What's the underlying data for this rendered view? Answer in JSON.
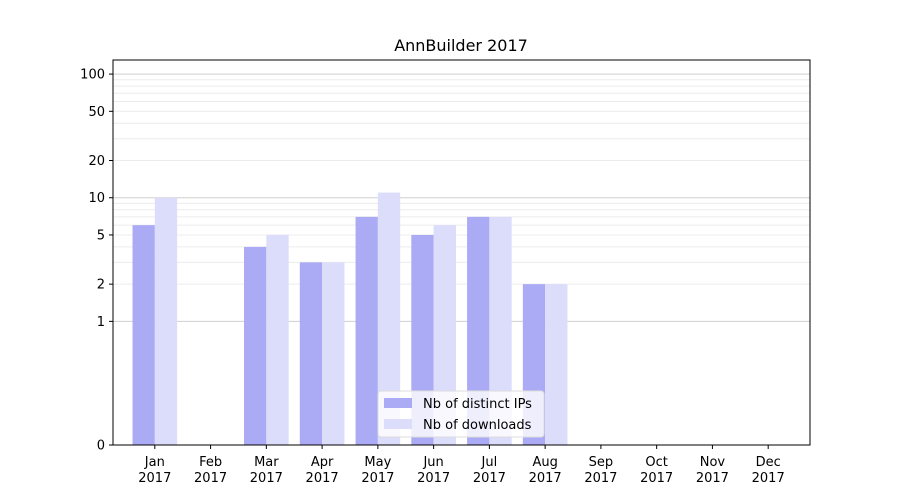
{
  "chart_data": {
    "type": "bar",
    "title": "AnnBuilder 2017",
    "xlabel": "",
    "ylabel": "",
    "y_scale": "symlog",
    "ylim": [
      0,
      130
    ],
    "y_ticks": [
      "0",
      "1",
      "2",
      "5",
      "10",
      "20",
      "50",
      "100"
    ],
    "grid": true,
    "legend_position": "bottom-center",
    "categories": [
      "Jan\n2017",
      "Feb\n2017",
      "Mar\n2017",
      "Apr\n2017",
      "May\n2017",
      "Jun\n2017",
      "Jul\n2017",
      "Aug\n2017",
      "Sep\n2017",
      "Oct\n2017",
      "Nov\n2017",
      "Dec\n2017"
    ],
    "series": [
      {
        "name": "Nb of distinct IPs",
        "color": "#aaaaf5",
        "values": [
          6,
          0,
          4,
          3,
          7,
          5,
          7,
          2,
          0,
          0,
          0,
          0
        ]
      },
      {
        "name": "Nb of downloads",
        "color": "#dcdcfb",
        "values": [
          10,
          0,
          5,
          3,
          11,
          6,
          7,
          2,
          0,
          0,
          0,
          0
        ]
      }
    ]
  }
}
